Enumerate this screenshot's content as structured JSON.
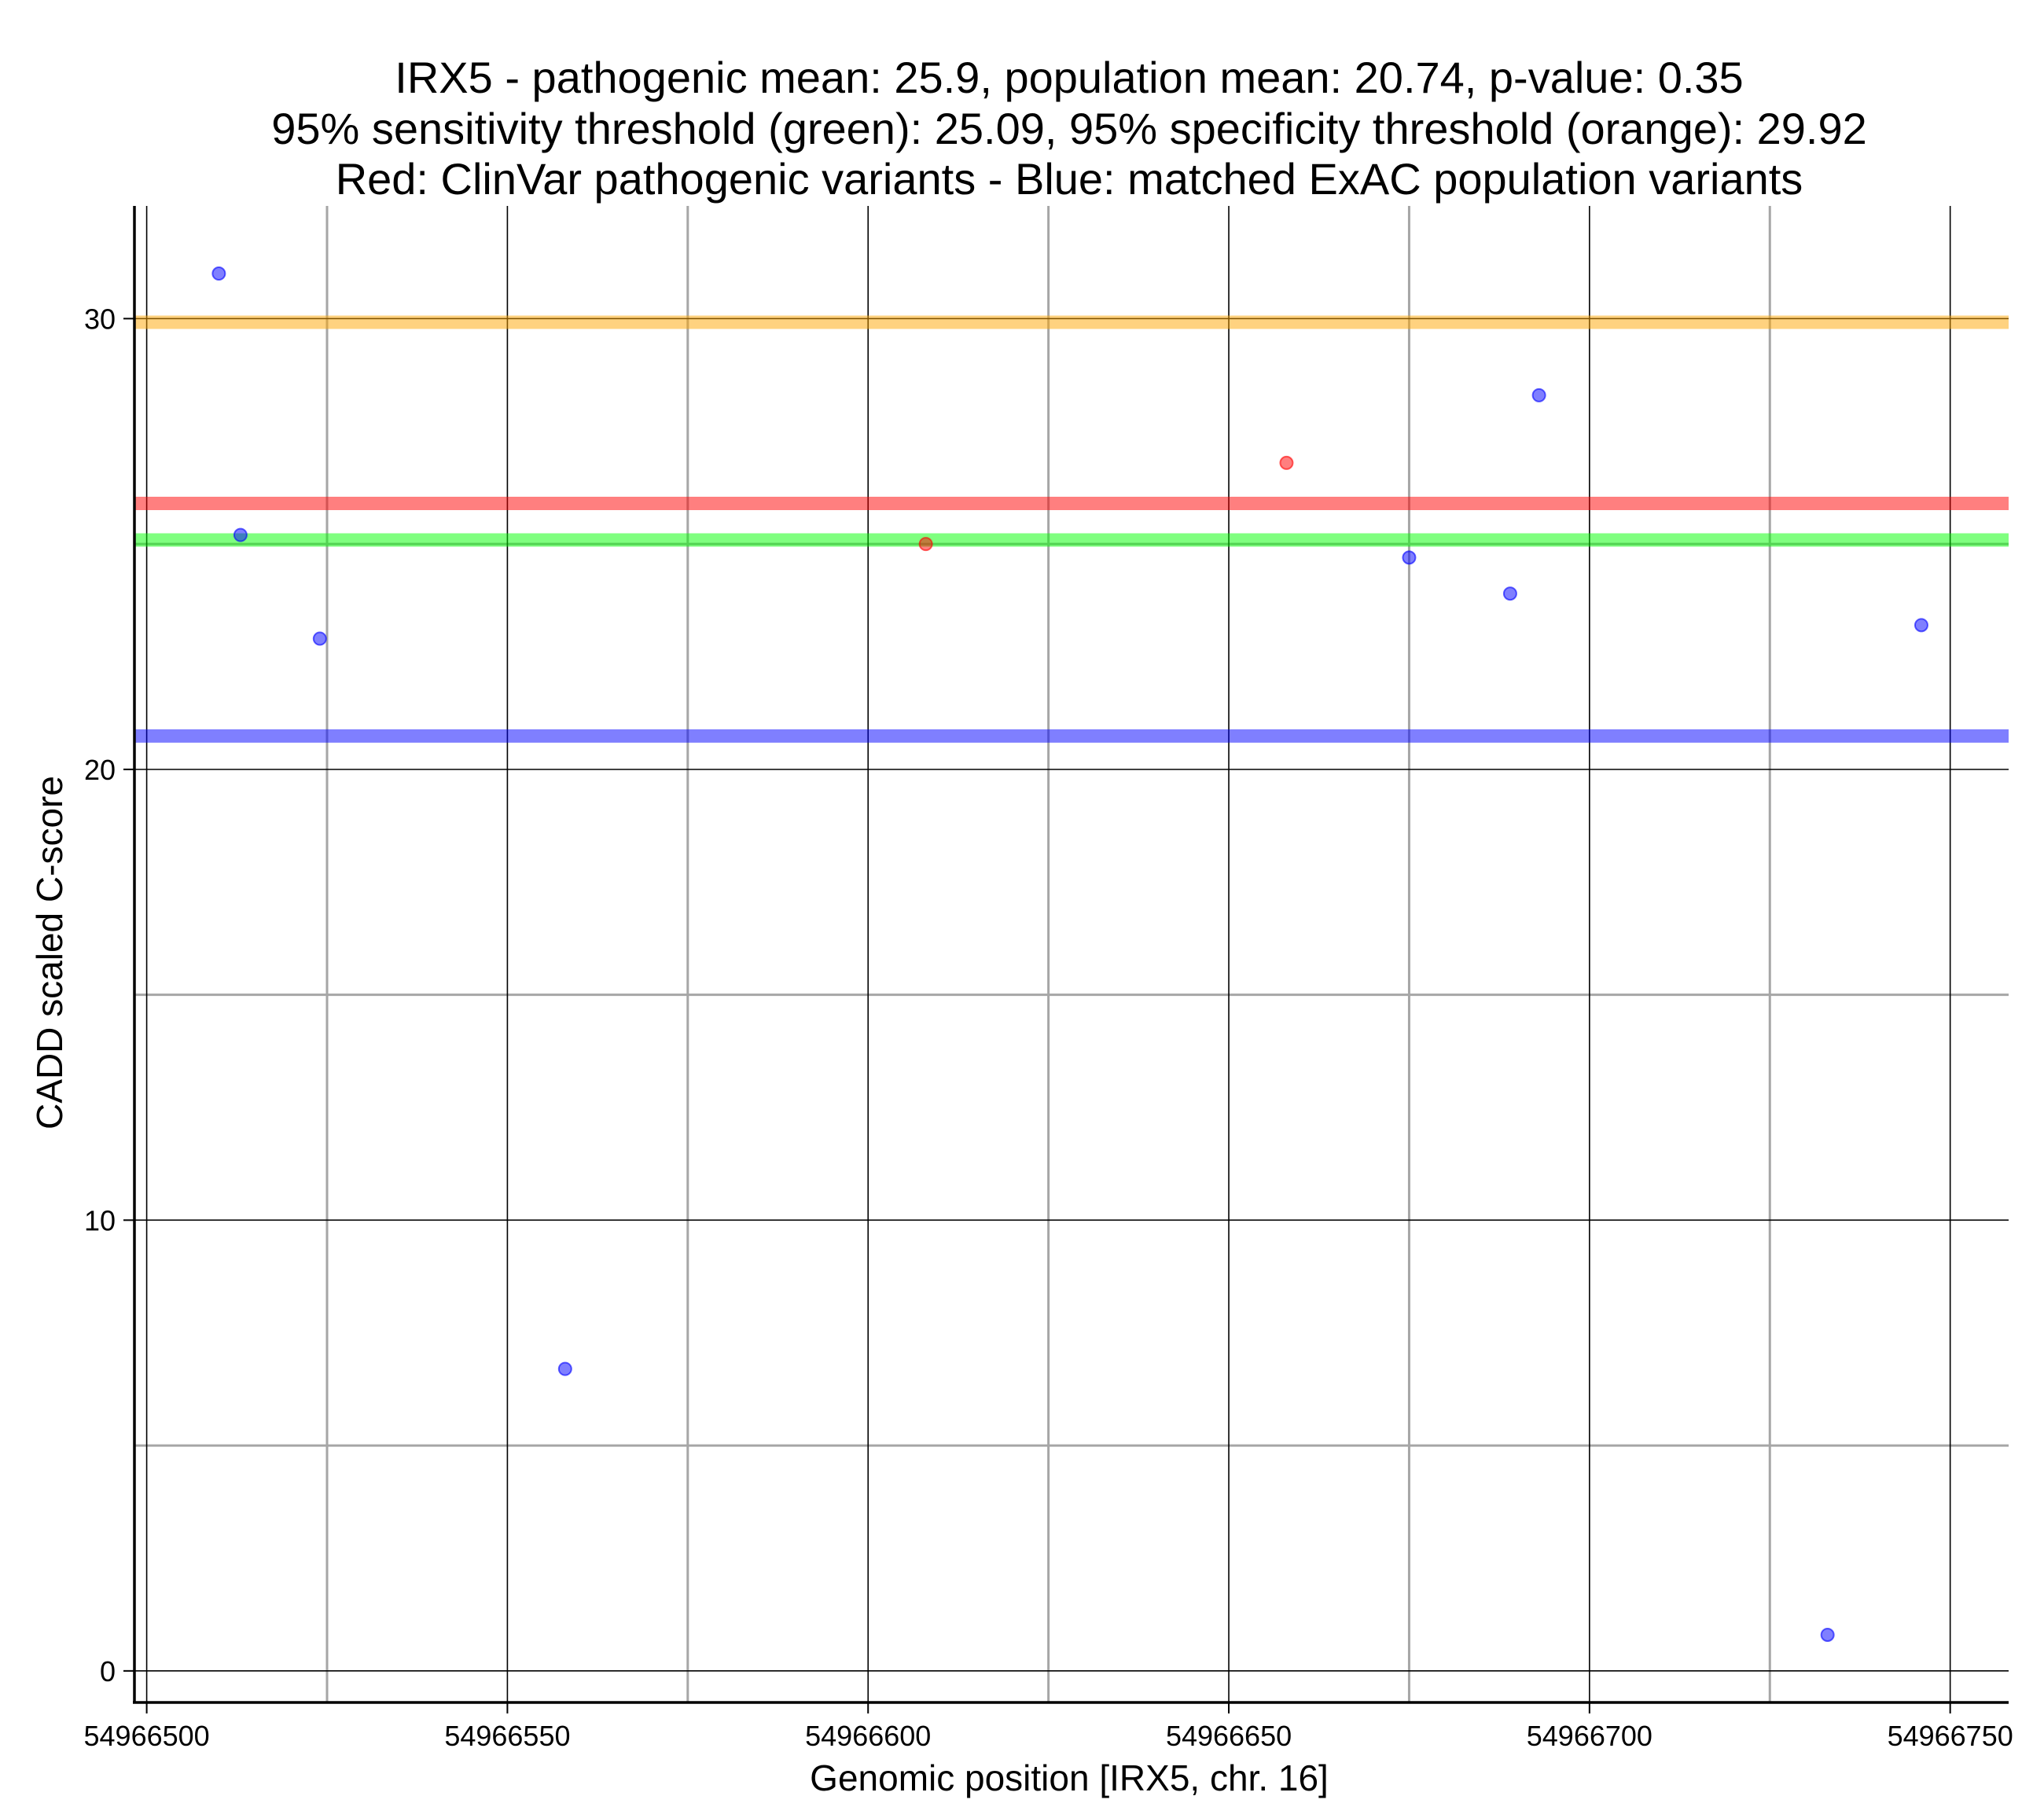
{
  "chart_data": {
    "type": "scatter",
    "title_lines": [
      "IRX5 - pathogenic mean: 25.9, population mean: 20.74, p-value: 0.35",
      "95% sensitivity threshold (green): 25.09, 95% specificity threshold (orange): 29.92",
      "Red: ClinVar pathogenic variants - Blue: matched ExAC population variants"
    ],
    "xlabel": "Genomic position [IRX5, chr. 16]",
    "ylabel": "CADD scaled C-score",
    "xlim": [
      54966498.3,
      54966758.1
    ],
    "ylim": [
      -0.7,
      32.5
    ],
    "x_ticks": [
      54966500,
      54966550,
      54966600,
      54966650,
      54966700,
      54966750
    ],
    "x_tick_labels": [
      "54966500",
      "54966550",
      "54966600",
      "54966650",
      "54966700",
      "54966750"
    ],
    "x_minor_gridlines": [
      54966525,
      54966575,
      54966625,
      54966675,
      54966725
    ],
    "y_ticks": [
      0,
      10,
      20,
      30
    ],
    "y_tick_labels": [
      "0",
      "10",
      "20",
      "30"
    ],
    "y_minor_gridlines": [
      5,
      15,
      25
    ],
    "colors": {
      "pathogenic": "#ff0000",
      "population": "#0000ff",
      "sensitivity": "#00ff00",
      "specificity": "#ffa500",
      "major_grid": "#000000",
      "minor_grid": "#a6a6a6"
    },
    "hlines": [
      {
        "name": "specificity-threshold",
        "value": 29.92,
        "color": "#ffa500"
      },
      {
        "name": "pathogenic-mean",
        "value": 25.9,
        "color": "#ff0000"
      },
      {
        "name": "sensitivity-threshold",
        "value": 25.09,
        "color": "#00ff00"
      },
      {
        "name": "population-mean",
        "value": 20.74,
        "color": "#0000ff"
      }
    ],
    "series": [
      {
        "name": "ClinVar pathogenic variants",
        "color": "#ff0000",
        "points": [
          {
            "x": 54966608,
            "y": 25.0
          },
          {
            "x": 54966658,
            "y": 26.8
          }
        ]
      },
      {
        "name": "matched ExAC population variants",
        "color": "#0000ff",
        "points": [
          {
            "x": 54966510,
            "y": 31.0
          },
          {
            "x": 54966513,
            "y": 25.2
          },
          {
            "x": 54966524,
            "y": 22.9
          },
          {
            "x": 54966558,
            "y": 6.7
          },
          {
            "x": 54966675,
            "y": 24.7
          },
          {
            "x": 54966689,
            "y": 23.9
          },
          {
            "x": 54966693,
            "y": 28.3
          },
          {
            "x": 54966733,
            "y": 0.8
          },
          {
            "x": 54966746,
            "y": 23.2
          }
        ]
      }
    ]
  }
}
